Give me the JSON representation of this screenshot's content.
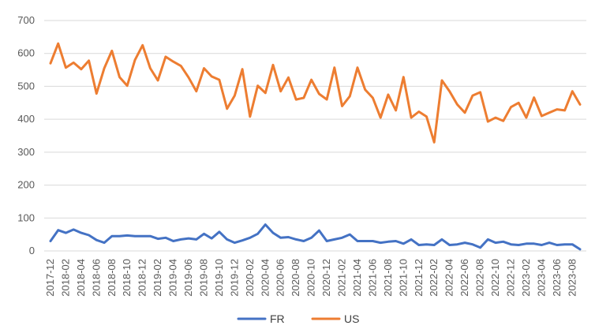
{
  "chart_data": {
    "type": "line",
    "title": "",
    "xlabel": "",
    "ylabel": "",
    "ylim": [
      0,
      700
    ],
    "y_ticks": [
      0,
      100,
      200,
      300,
      400,
      500,
      600,
      700
    ],
    "grid": "horizontal",
    "legend_position": "bottom",
    "x_tick_labels": [
      "2017-12",
      "2018-02",
      "2018-04",
      "2018-06",
      "2018-08",
      "2018-10",
      "2018-12",
      "2019-02",
      "2019-04",
      "2019-06",
      "2019-08",
      "2019-10",
      "2019-12",
      "2020-02",
      "2020-04",
      "2020-06",
      "2020-08",
      "2020-10",
      "2020-12",
      "2021-02",
      "2021-04",
      "2021-06",
      "2021-08",
      "2021-10",
      "2021-12",
      "2022-02",
      "2022-04",
      "2022-06",
      "2022-08",
      "2022-10",
      "2022-12",
      "2023-02",
      "2023-04",
      "2023-06",
      "2023-08"
    ],
    "x": [
      "2017-12",
      "2018-01",
      "2018-02",
      "2018-03",
      "2018-04",
      "2018-05",
      "2018-06",
      "2018-07",
      "2018-08",
      "2018-09",
      "2018-10",
      "2018-11",
      "2018-12",
      "2019-01",
      "2019-02",
      "2019-03",
      "2019-04",
      "2019-05",
      "2019-06",
      "2019-07",
      "2019-08",
      "2019-09",
      "2019-10",
      "2019-11",
      "2019-12",
      "2020-01",
      "2020-02",
      "2020-03",
      "2020-04",
      "2020-05",
      "2020-06",
      "2020-07",
      "2020-08",
      "2020-09",
      "2020-10",
      "2020-11",
      "2020-12",
      "2021-01",
      "2021-02",
      "2021-03",
      "2021-04",
      "2021-05",
      "2021-06",
      "2021-07",
      "2021-08",
      "2021-09",
      "2021-10",
      "2021-11",
      "2021-12",
      "2022-01",
      "2022-02",
      "2022-03",
      "2022-04",
      "2022-05",
      "2022-06",
      "2022-07",
      "2022-08",
      "2022-09",
      "2022-10",
      "2022-11",
      "2022-12",
      "2023-01",
      "2023-02",
      "2023-03",
      "2023-04",
      "2023-05",
      "2023-06",
      "2023-07",
      "2023-08",
      "2023-09"
    ],
    "series": [
      {
        "name": "FR",
        "color": "#4472C4",
        "values": [
          30,
          63,
          55,
          65,
          55,
          48,
          33,
          25,
          45,
          45,
          47,
          45,
          45,
          45,
          37,
          40,
          30,
          35,
          38,
          35,
          52,
          38,
          58,
          35,
          25,
          32,
          40,
          52,
          80,
          55,
          40,
          42,
          35,
          30,
          40,
          62,
          30,
          35,
          40,
          50,
          30,
          30,
          30,
          25,
          28,
          30,
          22,
          35,
          18,
          20,
          18,
          35,
          18,
          20,
          25,
          20,
          10,
          35,
          25,
          28,
          20,
          18,
          22,
          22,
          18,
          25,
          18,
          20,
          20,
          5
        ]
      },
      {
        "name": "US",
        "color": "#ED7D31",
        "values": [
          570,
          630,
          557,
          572,
          552,
          578,
          478,
          555,
          608,
          528,
          502,
          580,
          625,
          555,
          518,
          590,
          575,
          562,
          527,
          485,
          555,
          530,
          520,
          432,
          472,
          552,
          408,
          502,
          480,
          565,
          485,
          527,
          460,
          465,
          520,
          477,
          460,
          557,
          440,
          470,
          557,
          490,
          465,
          405,
          475,
          427,
          528,
          405,
          423,
          408,
          330,
          518,
          485,
          445,
          420,
          472,
          482,
          393,
          405,
          395,
          437,
          450,
          405,
          466,
          410,
          420,
          430,
          427,
          485,
          445
        ]
      }
    ]
  }
}
